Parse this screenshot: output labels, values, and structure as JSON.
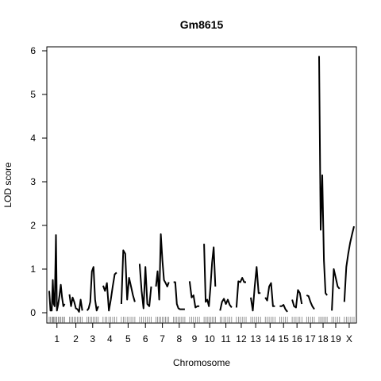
{
  "chart_data": {
    "type": "line",
    "title": "Gm8615",
    "xlabel": "Chromosome",
    "ylabel": "LOD score",
    "ylim": [
      0,
      6
    ],
    "yticks": [
      "0",
      "1",
      "2",
      "3",
      "4",
      "5",
      "6"
    ],
    "grid": false,
    "legend": "none",
    "line_color": "#000000",
    "chromosomes": [
      {
        "label": "1",
        "x": [
          0,
          8,
          16,
          22,
          28,
          34,
          42,
          48,
          56,
          64,
          72,
          80,
          88,
          96
        ],
        "y": [
          0.5,
          0.05,
          0.05,
          0.75,
          0.2,
          0.15,
          1.78,
          0.05,
          0.2,
          0.4,
          0.64,
          0.35,
          0.15,
          0.2
        ]
      },
      {
        "label": "2",
        "x": [
          0,
          10,
          20,
          30,
          40,
          50,
          60,
          70,
          80
        ],
        "y": [
          0.42,
          0.15,
          0.35,
          0.25,
          0.1,
          0.08,
          0.02,
          0.3,
          0.05
        ]
      },
      {
        "label": "3",
        "x": [
          0,
          10,
          20,
          30,
          40,
          50,
          60,
          70
        ],
        "y": [
          0.05,
          0.1,
          0.25,
          0.95,
          1.05,
          0.3,
          0.05,
          0.15
        ]
      },
      {
        "label": "4",
        "x": [
          0,
          12,
          24,
          36,
          48,
          60,
          72,
          84
        ],
        "y": [
          0.62,
          0.5,
          0.68,
          0.05,
          0.3,
          0.6,
          0.88,
          0.92
        ]
      },
      {
        "label": "5",
        "x": [
          0,
          12,
          24,
          36,
          48,
          60,
          72,
          84
        ],
        "y": [
          0.2,
          1.43,
          1.35,
          0.3,
          0.8,
          0.6,
          0.4,
          0.25
        ]
      },
      {
        "label": "6",
        "x": [
          0,
          12,
          24,
          36,
          48,
          60,
          72
        ],
        "y": [
          1.12,
          0.5,
          0.1,
          1.05,
          0.2,
          0.15,
          0.6
        ]
      },
      {
        "label": "7",
        "x": [
          0,
          10,
          20,
          30,
          40,
          50,
          60,
          70,
          80
        ],
        "y": [
          0.6,
          0.95,
          0.3,
          1.8,
          1.2,
          0.75,
          0.68,
          0.6,
          0.7
        ]
      },
      {
        "label": "8",
        "x": [
          0,
          10,
          20,
          30,
          40,
          50,
          60,
          70
        ],
        "y": [
          0.7,
          0.7,
          0.2,
          0.1,
          0.08,
          0.08,
          0.08,
          0.08
        ]
      },
      {
        "label": "9",
        "x": [
          0,
          12,
          24,
          36,
          48,
          60
        ],
        "y": [
          0.72,
          0.35,
          0.4,
          0.12,
          0.15,
          0.15
        ]
      },
      {
        "label": "10",
        "x": [
          0,
          10,
          20,
          30,
          40,
          50,
          60,
          70
        ],
        "y": [
          1.58,
          0.25,
          0.3,
          0.15,
          0.6,
          1.15,
          1.5,
          0.6
        ]
      },
      {
        "label": "11",
        "x": [
          0,
          12,
          24,
          36,
          48,
          60,
          72
        ],
        "y": [
          0.05,
          0.25,
          0.32,
          0.2,
          0.3,
          0.18,
          0.12
        ]
      },
      {
        "label": "12",
        "x": [
          0,
          12,
          24,
          36,
          48,
          60
        ],
        "y": [
          0.12,
          0.72,
          0.7,
          0.8,
          0.7,
          0.7
        ]
      },
      {
        "label": "13",
        "x": [
          0,
          12,
          24,
          36,
          48,
          60
        ],
        "y": [
          0.35,
          0.05,
          0.6,
          1.05,
          0.45,
          0.45
        ]
      },
      {
        "label": "14",
        "x": [
          0,
          12,
          24,
          36,
          48,
          60
        ],
        "y": [
          0.35,
          0.28,
          0.6,
          0.68,
          0.15,
          0.15
        ]
      },
      {
        "label": "15",
        "x": [
          0,
          12,
          24,
          36,
          48
        ],
        "y": [
          0.15,
          0.15,
          0.18,
          0.08,
          0.02
        ]
      },
      {
        "label": "16",
        "x": [
          0,
          12,
          24,
          36,
          48,
          60
        ],
        "y": [
          0.3,
          0.15,
          0.12,
          0.52,
          0.45,
          0.2
        ]
      },
      {
        "label": "17",
        "x": [
          0,
          12,
          24,
          36,
          48
        ],
        "y": [
          0.4,
          0.38,
          0.25,
          0.15,
          0.08
        ]
      },
      {
        "label": "18",
        "x": [
          0,
          10,
          20,
          30,
          40,
          50
        ],
        "y": [
          5.88,
          1.9,
          3.15,
          1.2,
          0.45,
          0.4
        ]
      },
      {
        "label": "19",
        "x": [
          0,
          12,
          24,
          36,
          48
        ],
        "y": [
          0.05,
          1.0,
          0.8,
          0.6,
          0.55
        ]
      },
      {
        "label": "X",
        "x": [
          0,
          12,
          24,
          36,
          48,
          60
        ],
        "y": [
          0.25,
          1.05,
          1.35,
          1.6,
          1.8,
          1.98
        ]
      }
    ]
  }
}
